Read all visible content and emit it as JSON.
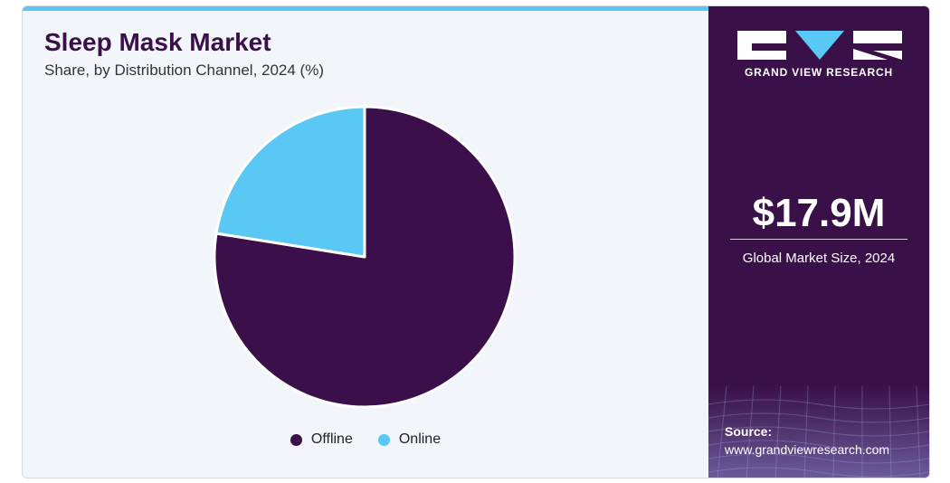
{
  "title": "Sleep Mask Market",
  "subtitle": "Share, by Distribution Channel, 2024 (%)",
  "chart_data": {
    "type": "pie",
    "title": "Sleep Mask Market",
    "subtitle": "Share, by Distribution Channel, 2024 (%)",
    "categories": [
      "Offline",
      "Online"
    ],
    "values": [
      77.5,
      22.5
    ],
    "colors": [
      "#3a0f4a",
      "#5ac8f5"
    ],
    "start_angle_deg": 0,
    "direction": "clockwise",
    "legend_position": "bottom"
  },
  "legend": [
    {
      "label": "Offline",
      "color": "#3a0f4a"
    },
    {
      "label": "Online",
      "color": "#5ac8f5"
    }
  ],
  "sidebar": {
    "brand": "GRAND VIEW RESEARCH",
    "market_size": "$17.9M",
    "market_size_label": "Global Market Size, 2024",
    "source_label": "Source:",
    "source_url": "www.grandviewresearch.com",
    "accent_color": "#5ac8f5",
    "background_color": "#3a1048"
  }
}
